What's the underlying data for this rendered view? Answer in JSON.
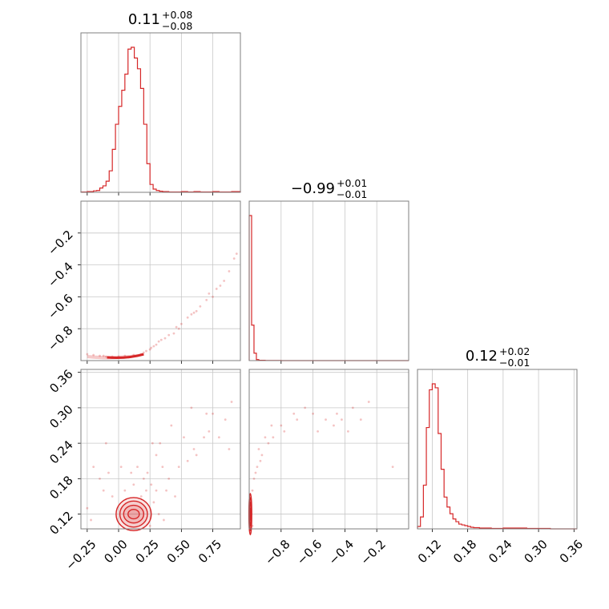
{
  "chart_data": {
    "type": "corner",
    "color": "#d62728",
    "grid": true,
    "parameters": [
      {
        "range": [
          -0.3,
          0.97
        ],
        "ticks": [
          -0.25,
          0.0,
          0.25,
          0.5,
          0.75
        ],
        "tick_labels": [
          "−0.25",
          "0.00",
          "0.25",
          "0.50",
          "0.75"
        ]
      },
      {
        "range": [
          -1.0,
          -0.0
        ],
        "ticks": [
          -0.8,
          -0.6,
          -0.4,
          -0.2
        ],
        "tick_labels": [
          "−0.8",
          "−0.6",
          "−0.4",
          "−0.2"
        ]
      },
      {
        "range": [
          0.095,
          0.365
        ],
        "ticks": [
          0.12,
          0.18,
          0.24,
          0.3,
          0.36
        ],
        "tick_labels": [
          "0.12",
          "0.18",
          "0.24",
          "0.30",
          "0.36"
        ]
      }
    ],
    "titles": [
      {
        "median": "0.11",
        "plus": "+0.08",
        "minus": "−0.08"
      },
      {
        "median": "−0.99",
        "plus": "+0.01",
        "minus": "−0.01"
      },
      {
        "median": "0.12",
        "plus": "+0.02",
        "minus": "−0.01"
      }
    ],
    "histograms": [
      {
        "bin_edges": [
          -0.3,
          -0.275,
          -0.25,
          -0.225,
          -0.2,
          -0.175,
          -0.15,
          -0.125,
          -0.1,
          -0.075,
          -0.05,
          -0.025,
          0.0,
          0.025,
          0.05,
          0.075,
          0.1,
          0.125,
          0.15,
          0.175,
          0.2,
          0.225,
          0.25,
          0.275,
          0.3,
          0.325,
          0.35,
          0.375,
          0.4,
          0.425,
          0.45,
          0.5,
          0.55,
          0.6,
          0.65,
          0.7,
          0.75,
          0.8,
          0.85,
          0.9,
          0.97
        ],
        "counts": [
          1,
          1,
          2,
          2,
          4,
          5,
          12,
          18,
          31,
          60,
          120,
          190,
          240,
          285,
          330,
          400,
          405,
          375,
          345,
          290,
          190,
          80,
          22,
          9,
          5,
          3,
          2,
          2,
          1,
          1,
          1,
          2,
          1,
          2,
          1,
          1,
          2,
          1,
          1,
          2
        ]
      },
      {
        "bin_edges": [
          -1.0,
          -0.985,
          -0.97,
          -0.955,
          -0.94,
          -0.9,
          -0.8,
          -0.6,
          -0.4,
          -0.2,
          0.0
        ],
        "counts": [
          880,
          215,
          45,
          6,
          2,
          1,
          0,
          0,
          0,
          0
        ]
      },
      {
        "bin_edges": [
          0.095,
          0.1,
          0.105,
          0.11,
          0.115,
          0.12,
          0.125,
          0.13,
          0.135,
          0.14,
          0.145,
          0.15,
          0.155,
          0.16,
          0.165,
          0.17,
          0.175,
          0.18,
          0.185,
          0.19,
          0.2,
          0.21,
          0.22,
          0.24,
          0.26,
          0.28,
          0.3,
          0.32,
          0.365
        ],
        "counts": [
          6,
          30,
          110,
          255,
          350,
          365,
          355,
          240,
          150,
          80,
          55,
          38,
          25,
          18,
          12,
          10,
          8,
          6,
          4,
          3,
          2,
          2,
          1,
          2,
          2,
          1,
          1,
          0
        ]
      }
    ],
    "scatter": [
      {
        "x_param": 0,
        "y_param": 1,
        "points": [
          [
            0.72,
            -0.58
          ],
          [
            0.65,
            -0.66
          ],
          [
            0.55,
            -0.73
          ],
          [
            0.46,
            -0.79
          ],
          [
            0.4,
            -0.84
          ],
          [
            0.34,
            -0.87
          ],
          [
            0.3,
            -0.9
          ],
          [
            0.26,
            -0.92
          ],
          [
            0.22,
            -0.94
          ],
          [
            0.58,
            -0.71
          ],
          [
            0.78,
            -0.55
          ],
          [
            0.84,
            -0.5
          ],
          [
            0.88,
            -0.44
          ],
          [
            0.92,
            -0.36
          ],
          [
            0.94,
            -0.33
          ],
          [
            0.5,
            -0.77
          ],
          [
            0.7,
            -0.62
          ],
          [
            0.37,
            -0.86
          ],
          [
            0.2,
            -0.95
          ],
          [
            0.12,
            -0.965
          ],
          [
            0.05,
            -0.97
          ],
          [
            0.0,
            -0.975
          ],
          [
            -0.05,
            -0.975
          ],
          [
            -0.12,
            -0.97
          ],
          [
            -0.2,
            -0.965
          ],
          [
            -0.25,
            -0.96
          ],
          [
            0.15,
            -0.97
          ],
          [
            0.08,
            -0.98
          ],
          [
            0.18,
            -0.96
          ],
          [
            0.25,
            -0.93
          ],
          [
            0.28,
            -0.91
          ],
          [
            0.44,
            -0.83
          ],
          [
            0.6,
            -0.7
          ],
          [
            0.62,
            -0.69
          ],
          [
            0.75,
            -0.6
          ],
          [
            0.81,
            -0.53
          ],
          [
            -0.15,
            -0.97
          ],
          [
            -0.1,
            -0.975
          ],
          [
            0.32,
            -0.88
          ],
          [
            0.48,
            -0.8
          ]
        ]
      },
      {
        "x_param": 0,
        "y_param": 2,
        "points": [
          [
            0.55,
            0.21
          ],
          [
            0.6,
            0.23
          ],
          [
            0.68,
            0.25
          ],
          [
            0.72,
            0.26
          ],
          [
            0.8,
            0.25
          ],
          [
            0.85,
            0.28
          ],
          [
            0.9,
            0.31
          ],
          [
            0.88,
            0.23
          ],
          [
            0.62,
            0.22
          ],
          [
            0.48,
            0.2
          ],
          [
            0.4,
            0.18
          ],
          [
            0.35,
            0.2
          ],
          [
            0.33,
            0.24
          ],
          [
            0.3,
            0.22
          ],
          [
            0.27,
            0.24
          ],
          [
            0.45,
            0.15
          ],
          [
            0.38,
            0.16
          ],
          [
            0.3,
            0.16
          ],
          [
            0.26,
            0.17
          ],
          [
            -0.1,
            0.24
          ],
          [
            -0.2,
            0.2
          ],
          [
            -0.15,
            0.18
          ],
          [
            -0.12,
            0.16
          ],
          [
            -0.08,
            0.19
          ],
          [
            0.02,
            0.2
          ],
          [
            0.1,
            0.19
          ],
          [
            0.15,
            0.2
          ],
          [
            0.2,
            0.18
          ],
          [
            0.23,
            0.19
          ],
          [
            0.28,
            0.14
          ],
          [
            -0.25,
            0.13
          ],
          [
            -0.22,
            0.11
          ],
          [
            0.32,
            0.12
          ],
          [
            0.36,
            0.11
          ],
          [
            0.25,
            0.1
          ],
          [
            0.7,
            0.29
          ],
          [
            0.75,
            0.29
          ],
          [
            0.52,
            0.25
          ],
          [
            0.42,
            0.27
          ],
          [
            0.58,
            0.3
          ],
          [
            -0.05,
            0.15
          ],
          [
            0.05,
            0.16
          ],
          [
            0.12,
            0.17
          ],
          [
            0.18,
            0.15
          ],
          [
            0.22,
            0.16
          ]
        ]
      },
      {
        "x_param": 1,
        "y_param": 2,
        "points": [
          [
            -0.25,
            0.31
          ],
          [
            -0.35,
            0.3
          ],
          [
            -0.42,
            0.28
          ],
          [
            -0.47,
            0.27
          ],
          [
            -0.52,
            0.28
          ],
          [
            -0.6,
            0.29
          ],
          [
            -0.65,
            0.3
          ],
          [
            -0.72,
            0.29
          ],
          [
            -0.8,
            0.27
          ],
          [
            -0.85,
            0.25
          ],
          [
            -0.88,
            0.24
          ],
          [
            -0.92,
            0.22
          ],
          [
            -0.95,
            0.2
          ],
          [
            -0.97,
            0.18
          ],
          [
            -0.98,
            0.16
          ],
          [
            -0.99,
            0.14
          ],
          [
            -0.78,
            0.26
          ],
          [
            -0.7,
            0.28
          ],
          [
            -0.57,
            0.26
          ],
          [
            -0.45,
            0.29
          ],
          [
            -0.38,
            0.26
          ],
          [
            -0.3,
            0.28
          ],
          [
            -0.1,
            0.2
          ],
          [
            -0.93,
            0.21
          ],
          [
            -0.96,
            0.19
          ],
          [
            -0.94,
            0.23
          ],
          [
            -0.9,
            0.25
          ],
          [
            -0.86,
            0.27
          ],
          [
            -0.98,
            0.1
          ],
          [
            -0.99,
            0.12
          ]
        ]
      }
    ],
    "contours": [
      {
        "x_param": 0,
        "y_param": 2,
        "center": [
          0.12,
          0.12
        ],
        "radii": [
          [
            0.045,
            0.008
          ],
          [
            0.08,
            0.015
          ],
          [
            0.11,
            0.022
          ],
          [
            0.14,
            0.028
          ]
        ]
      },
      {
        "x_param": 1,
        "y_param": 2,
        "center": [
          -0.993,
          0.12
        ],
        "radii": [
          [
            0.003,
            0.01
          ],
          [
            0.005,
            0.02
          ],
          [
            0.007,
            0.028
          ],
          [
            0.009,
            0.035
          ]
        ]
      }
    ],
    "core_cloud_01": {
      "x_range": [
        -0.25,
        0.2
      ],
      "y": -0.975
    }
  }
}
